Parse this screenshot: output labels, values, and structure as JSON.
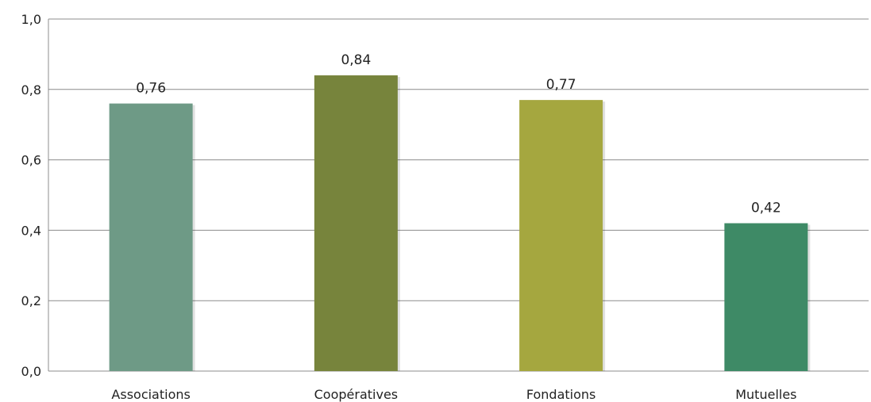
{
  "chart_data": {
    "type": "bar",
    "categories": [
      "Associations",
      "Coopératives",
      "Fondations",
      "Mutuelles"
    ],
    "values": [
      0.76,
      0.84,
      0.77,
      0.42
    ],
    "value_labels": [
      "0,76",
      "0,84",
      "0,77",
      "0,42"
    ],
    "bar_colors": [
      "#6e9a86",
      "#77843c",
      "#a5a73f",
      "#3e8a66"
    ],
    "y_ticks": [
      0.0,
      0.2,
      0.4,
      0.6,
      0.8,
      1.0
    ],
    "y_tick_labels": [
      "0,0",
      "0,2",
      "0,4",
      "0,6",
      "0,8",
      "1,0"
    ],
    "ylim": [
      0,
      1.0
    ],
    "grid": true,
    "legend": "none",
    "title": "",
    "xlabel": "",
    "ylabel": ""
  }
}
